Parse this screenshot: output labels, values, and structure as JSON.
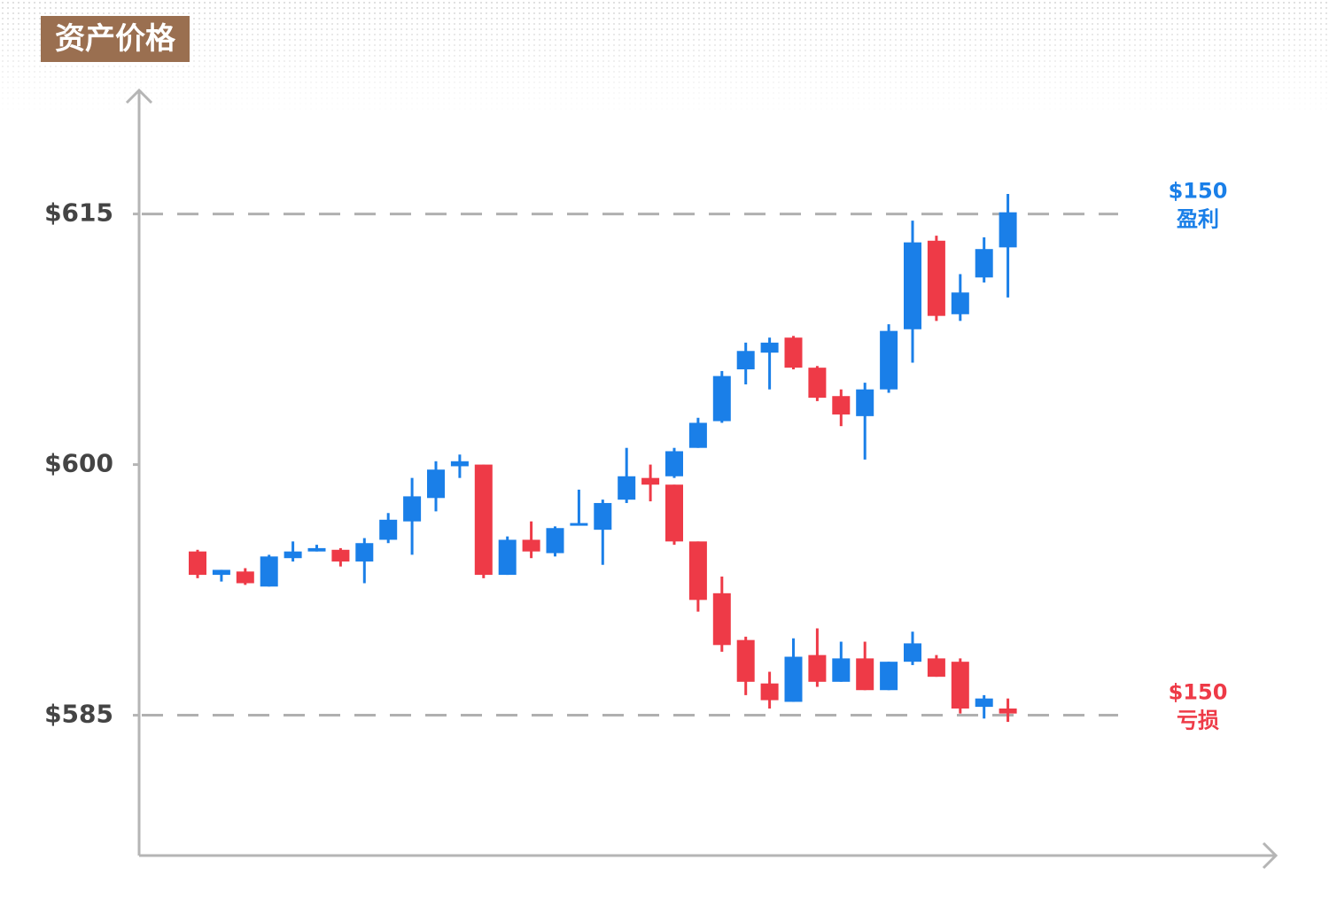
{
  "chart_data": {
    "type": "candlestick",
    "title": "资产价格",
    "ylim": [
      576.6,
      622.4
    ],
    "yticks": [
      {
        "value": 615,
        "label": "$615"
      },
      {
        "value": 600,
        "label": "$600"
      },
      {
        "value": 585,
        "label": "$585"
      }
    ],
    "up_color": "#1a7fe8",
    "down_color": "#ee3a47",
    "series": [
      {
        "open": [
          594.8,
          593.4,
          593.6,
          592.7,
          594.4,
          594.8,
          594.9,
          594.2,
          595.5,
          596.6,
          598.0,
          599.9,
          600.0,
          593.4,
          595.5,
          594.7,
          596.4,
          596.1,
          597.9,
          599.2,
          599.3,
          601.0,
          602.6,
          605.7,
          606.7,
          607.6,
          605.8,
          604.1,
          602.9,
          604.5,
          608.1,
          613.4,
          609.0,
          611.2,
          613.0
        ],
        "high": [
          594.9,
          593.7,
          593.8,
          594.6,
          595.4,
          595.2,
          595.0,
          595.6,
          597.1,
          599.2,
          600.2,
          600.6,
          600.0,
          595.7,
          596.6,
          596.3,
          598.5,
          597.9,
          601.0,
          600.0,
          601.0,
          602.8,
          605.6,
          607.3,
          607.6,
          607.7,
          605.9,
          604.5,
          604.9,
          608.4,
          614.6,
          613.7,
          611.4,
          613.6,
          616.2
        ],
        "low": [
          593.2,
          593.0,
          592.8,
          592.7,
          594.2,
          594.8,
          593.9,
          592.9,
          595.3,
          594.6,
          597.2,
          599.2,
          593.2,
          593.4,
          594.4,
          594.5,
          596.4,
          594.0,
          597.7,
          597.8,
          599.2,
          601.0,
          602.5,
          604.8,
          604.5,
          605.7,
          603.8,
          602.3,
          600.3,
          604.3,
          606.1,
          608.6,
          608.6,
          610.9,
          610.0
        ],
        "close": [
          593.4,
          593.7,
          592.9,
          594.5,
          594.8,
          595.0,
          594.2,
          595.3,
          596.7,
          598.1,
          599.7,
          600.2,
          593.4,
          595.5,
          594.8,
          596.2,
          596.5,
          597.7,
          599.3,
          598.8,
          600.8,
          602.5,
          605.3,
          606.8,
          607.3,
          605.8,
          604.0,
          603.0,
          604.5,
          608.0,
          613.3,
          608.9,
          610.3,
          612.9,
          615.1
        ]
      },
      {
        "open": [
          null,
          null,
          null,
          null,
          null,
          null,
          null,
          null,
          null,
          null,
          null,
          null,
          null,
          null,
          null,
          null,
          null,
          null,
          null,
          null,
          598.8,
          595.4,
          592.3,
          589.5,
          586.9,
          585.8,
          588.6,
          587.0,
          588.4,
          586.5,
          588.2,
          588.4,
          588.2,
          585.5,
          585.4
        ],
        "high": [
          null,
          null,
          null,
          null,
          null,
          null,
          null,
          null,
          null,
          null,
          null,
          null,
          null,
          null,
          null,
          null,
          null,
          null,
          null,
          null,
          598.8,
          595.4,
          593.3,
          589.7,
          587.6,
          589.6,
          590.2,
          589.4,
          589.4,
          588.2,
          590.0,
          588.6,
          588.4,
          586.2,
          586.0
        ],
        "low": [
          null,
          null,
          null,
          null,
          null,
          null,
          null,
          null,
          null,
          null,
          null,
          null,
          null,
          null,
          null,
          null,
          null,
          null,
          null,
          null,
          595.2,
          591.2,
          588.8,
          586.2,
          585.4,
          585.8,
          586.7,
          587.0,
          586.5,
          586.5,
          588.0,
          587.3,
          585.1,
          584.8,
          584.6
        ],
        "close": [
          null,
          null,
          null,
          null,
          null,
          null,
          null,
          null,
          null,
          null,
          null,
          null,
          null,
          null,
          null,
          null,
          null,
          null,
          null,
          null,
          595.4,
          591.9,
          589.2,
          587.0,
          585.9,
          588.5,
          587.0,
          588.4,
          586.5,
          588.2,
          589.3,
          587.3,
          585.4,
          586.0,
          585.1
        ]
      }
    ],
    "annotations": [
      {
        "y": 615,
        "label": "$150",
        "note": "盈利",
        "color": "#1a7fe8"
      },
      {
        "y": 585,
        "label": "$150",
        "note": "亏损",
        "color": "#ee3a47"
      }
    ]
  }
}
